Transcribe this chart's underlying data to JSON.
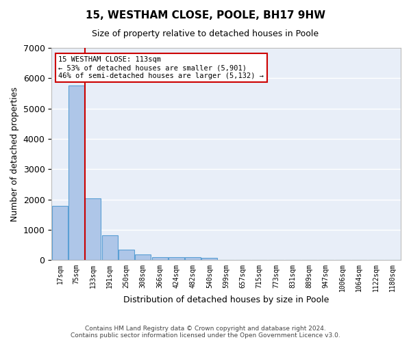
{
  "title1": "15, WESTHAM CLOSE, POOLE, BH17 9HW",
  "title2": "Size of property relative to detached houses in Poole",
  "xlabel": "Distribution of detached houses by size in Poole",
  "ylabel": "Number of detached properties",
  "bar_color": "#aec6e8",
  "bar_edge_color": "#5a9fd4",
  "background_color": "#e8eef8",
  "grid_color": "#ffffff",
  "bin_labels": [
    "17sqm",
    "75sqm",
    "133sqm",
    "191sqm",
    "250sqm",
    "308sqm",
    "366sqm",
    "424sqm",
    "482sqm",
    "540sqm",
    "599sqm",
    "657sqm",
    "715sqm",
    "773sqm",
    "831sqm",
    "889sqm",
    "947sqm",
    "1006sqm",
    "1064sqm",
    "1122sqm",
    "1180sqm"
  ],
  "bar_values": [
    1800,
    5750,
    2050,
    825,
    340,
    185,
    105,
    95,
    95,
    70,
    0,
    0,
    0,
    0,
    0,
    0,
    0,
    0,
    0,
    0,
    0
  ],
  "property_line_color": "#cc0000",
  "annotation_text": "15 WESTHAM CLOSE: 113sqm\n← 53% of detached houses are smaller (5,901)\n46% of semi-detached houses are larger (5,132) →",
  "annotation_box_color": "#cc0000",
  "ylim": [
    0,
    7000
  ],
  "yticks": [
    0,
    1000,
    2000,
    3000,
    4000,
    5000,
    6000,
    7000
  ],
  "footer_line1": "Contains HM Land Registry data © Crown copyright and database right 2024.",
  "footer_line2": "Contains public sector information licensed under the Open Government Licence v3.0."
}
